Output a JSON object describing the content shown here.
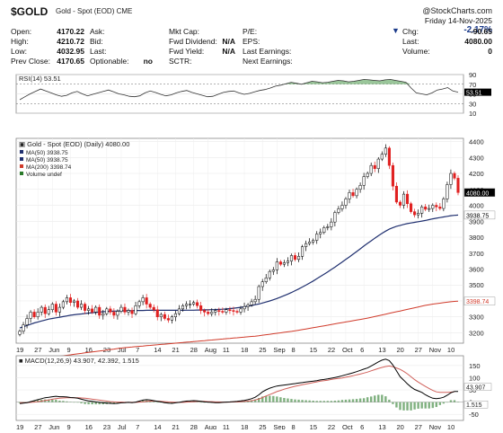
{
  "header": {
    "ticker": "$GOLD",
    "description": "Gold - Spot (EOD)",
    "exchange": "CME",
    "brand": "@StockCharts.com",
    "date": "Friday 14-Nov-2025",
    "change_pct": "-2.17%",
    "rows": [
      {
        "l1": "Open:",
        "v1": "4170.22",
        "l2": "Ask:",
        "v2": "",
        "l3": "Mkt Cap:",
        "v3": "",
        "l4": "P/E:",
        "v4": "",
        "l5": "Chg:",
        "v5": "-90.65"
      },
      {
        "l1": "High:",
        "v1": "4210.72",
        "l2": "Bid:",
        "v2": "",
        "l3": "Fwd Dividend:",
        "v3": "N/A",
        "l4": "EPS:",
        "v4": "",
        "l5": "Last:",
        "v5": "4080.00"
      },
      {
        "l1": "Low:",
        "v1": "4032.95",
        "l2": "Last:",
        "v2": "",
        "l3": "Fwd Yield:",
        "v3": "N/A",
        "l4": "Last Earnings:",
        "v4": "",
        "l5": "Volume:",
        "v5": "0"
      },
      {
        "l1": "Prev Close:",
        "v1": "4170.65",
        "l2": "Optionable:",
        "v2": "no",
        "l3": "SCTR:",
        "v3": "",
        "l4": "Next Earnings:",
        "v4": "",
        "l5": "",
        "v5": ""
      }
    ]
  },
  "colors": {
    "up": "#ffffff",
    "down": "#e01f1f",
    "ma50": "#1f2f6f",
    "ma200": "#d03a2a",
    "rsi_fill": "#8fc08f",
    "macd": "#000000",
    "signal": "#d0605a",
    "hist": "#7fb07f",
    "last_tag": "#000000",
    "down_arrow": "#1a3a8a"
  },
  "chart_data": [
    {
      "type": "line",
      "title": "RSI(14) 53.51",
      "indicator": "RSI(14)",
      "last_value": 53.51,
      "ylim": [
        10,
        90
      ],
      "yticks": [
        10,
        30,
        50,
        70,
        90
      ],
      "overbought": 70,
      "oversold": 30,
      "values": [
        38,
        44,
        50,
        55,
        60,
        56,
        52,
        48,
        45,
        47,
        52,
        55,
        50,
        46,
        49,
        52,
        55,
        58,
        54,
        50,
        48,
        45,
        44,
        46,
        52,
        56,
        53,
        49,
        46,
        48,
        52,
        55,
        57,
        53,
        50,
        47,
        44,
        45,
        49,
        53,
        55,
        56,
        52,
        49,
        51,
        54,
        57,
        59,
        62,
        66,
        68,
        71,
        74,
        72,
        70,
        73,
        76,
        75,
        73,
        74,
        76,
        78,
        77,
        75,
        76,
        78,
        80,
        79,
        78,
        77,
        79,
        80,
        78,
        76,
        74,
        62,
        52,
        50,
        48,
        52,
        58,
        60,
        63,
        56,
        53.51
      ]
    },
    {
      "type": "candlestick",
      "title": "Gold - Spot (EOD) (Daily) 4080.00",
      "legend": [
        "MA(50) 3938.75",
        "MA(50) 3938.75",
        "MA(200) 3398.74",
        "Volume undef"
      ],
      "ylim": [
        3135,
        4420
      ],
      "yticks": [
        3200,
        3300,
        3400,
        3500,
        3600,
        3700,
        3800,
        3900,
        4000,
        4100,
        4200,
        4300,
        4400
      ],
      "last_price": "4080.00",
      "ma50_last": "3938.75",
      "ma200_last": "3398.74",
      "x_labels": [
        "19",
        "27",
        "Jun",
        "9",
        "16",
        "23",
        "Jul",
        "7",
        "14",
        "21",
        "28",
        "Aug",
        "11",
        "18",
        "25",
        "Sep",
        "8",
        "15",
        "22",
        "Oct",
        "6",
        "13",
        "20",
        "27",
        "Nov",
        "10"
      ],
      "x_label_index": [
        0,
        5,
        9,
        14,
        19,
        24,
        28,
        33,
        38,
        43,
        48,
        52,
        57,
        62,
        67,
        71,
        76,
        81,
        86,
        90,
        95,
        100,
        105,
        110,
        114,
        119
      ],
      "closes": [
        3210,
        3250,
        3290,
        3330,
        3300,
        3330,
        3360,
        3320,
        3345,
        3380,
        3330,
        3360,
        3395,
        3420,
        3390,
        3400,
        3360,
        3380,
        3340,
        3350,
        3330,
        3360,
        3310,
        3320,
        3350,
        3330,
        3310,
        3335,
        3360,
        3330,
        3340,
        3320,
        3370,
        3395,
        3420,
        3380,
        3360,
        3345,
        3300,
        3315,
        3290,
        3280,
        3300,
        3320,
        3350,
        3370,
        3380,
        3380,
        3390,
        3370,
        3340,
        3330,
        3320,
        3330,
        3340,
        3335,
        3330,
        3345,
        3340,
        3335,
        3330,
        3350,
        3365,
        3375,
        3395,
        3410,
        3490,
        3520,
        3545,
        3585,
        3595,
        3645,
        3630,
        3640,
        3650,
        3685,
        3660,
        3680,
        3740,
        3760,
        3770,
        3780,
        3820,
        3830,
        3860,
        3865,
        3895,
        3955,
        3978,
        4000,
        4040,
        4080,
        4060,
        4100,
        4125,
        4180,
        4200,
        4250,
        4230,
        4290,
        4320,
        4359,
        4250,
        4120,
        4020,
        4000,
        4070,
        4010,
        3960,
        3940,
        3950,
        3990,
        3975,
        3980,
        4000,
        3990,
        3980,
        4040,
        4130,
        4200,
        4170,
        4080
      ],
      "ma50": [
        3230,
        3238,
        3246,
        3254,
        3262,
        3268,
        3274,
        3280,
        3286,
        3290,
        3294,
        3298,
        3302,
        3306,
        3310,
        3313,
        3316,
        3318,
        3321,
        3324,
        3326,
        3328,
        3330,
        3332,
        3334,
        3335,
        3336,
        3337,
        3338,
        3338,
        3339,
        3339,
        3340,
        3340,
        3340,
        3341,
        3341,
        3341,
        3341,
        3341,
        3341,
        3341,
        3341,
        3341,
        3341,
        3341,
        3342,
        3342,
        3342,
        3343,
        3343,
        3344,
        3344,
        3345,
        3346,
        3347,
        3348,
        3350,
        3352,
        3354,
        3357,
        3360,
        3363,
        3367,
        3371,
        3376,
        3381,
        3387,
        3393,
        3400,
        3407,
        3415,
        3424,
        3433,
        3443,
        3453,
        3464,
        3475,
        3487,
        3499,
        3512,
        3525,
        3539,
        3553,
        3567,
        3582,
        3597,
        3612,
        3628,
        3644,
        3660,
        3676,
        3693,
        3710,
        3727,
        3744,
        3761,
        3777,
        3793,
        3809,
        3824,
        3838,
        3850,
        3860,
        3868,
        3874,
        3880,
        3885,
        3889,
        3893,
        3897,
        3901,
        3905,
        3910,
        3915,
        3919,
        3923,
        3927,
        3931,
        3935,
        3937,
        3938.75
      ],
      "ma200": [
        3020,
        3023,
        3026,
        3029,
        3032,
        3035,
        3038,
        3041,
        3044,
        3047,
        3050,
        3053,
        3056,
        3059,
        3062,
        3065,
        3068,
        3071,
        3074,
        3077,
        3080,
        3083,
        3086,
        3089,
        3092,
        3095,
        3098,
        3101,
        3104,
        3107,
        3109,
        3111,
        3113,
        3115,
        3117,
        3119,
        3121,
        3123,
        3125,
        3127,
        3129,
        3131,
        3133,
        3135,
        3137,
        3139,
        3141,
        3143,
        3145,
        3147,
        3149,
        3151,
        3153,
        3155,
        3157,
        3159,
        3161,
        3163,
        3165,
        3167,
        3169,
        3171,
        3173,
        3175,
        3177,
        3179,
        3182,
        3185,
        3188,
        3191,
        3194,
        3197,
        3200,
        3203,
        3206,
        3209,
        3212,
        3216,
        3220,
        3224,
        3228,
        3232,
        3236,
        3240,
        3244,
        3248,
        3252,
        3256,
        3260,
        3264,
        3268,
        3272,
        3276,
        3280,
        3284,
        3288,
        3292,
        3297,
        3302,
        3307,
        3312,
        3317,
        3322,
        3327,
        3332,
        3337,
        3342,
        3347,
        3352,
        3357,
        3362,
        3367,
        3372,
        3376,
        3380,
        3383,
        3386,
        3389,
        3392,
        3395,
        3397,
        3398.74
      ]
    },
    {
      "type": "line",
      "title": "MACD(12,26,9) 43.907, 42.392, 1.515",
      "indicator": "MACD(12,26,9)",
      "macd_last": "43.907",
      "signal_last": "42.392",
      "hist_last": "1.515",
      "ylim": [
        -75,
        190
      ],
      "yticks": [
        -50,
        0,
        50,
        100,
        150
      ],
      "x_labels": [
        "19",
        "27",
        "Jun",
        "9",
        "16",
        "23",
        "Jul",
        "7",
        "14",
        "21",
        "28",
        "Aug",
        "11",
        "18",
        "25",
        "Sep",
        "8",
        "15",
        "22",
        "Oct",
        "6",
        "13",
        "20",
        "27",
        "Nov",
        "10"
      ],
      "macd": [
        -6,
        -4,
        -2,
        2,
        6,
        10,
        14,
        18,
        20,
        22,
        24,
        22,
        22,
        21,
        19,
        18,
        16,
        12,
        8,
        5,
        3,
        1,
        -1,
        -3,
        -4,
        -5,
        -6,
        -5,
        -3,
        -2,
        -1,
        -2,
        0,
        4,
        8,
        10,
        9,
        6,
        3,
        1,
        -2,
        -4,
        -5,
        -3,
        -1,
        2,
        4,
        5,
        6,
        5,
        3,
        1,
        0,
        -1,
        -2,
        -2,
        -1,
        0,
        1,
        2,
        3,
        5,
        7,
        10,
        14,
        20,
        30,
        42,
        50,
        57,
        62,
        66,
        68,
        70,
        72,
        74,
        76,
        78,
        80,
        82,
        84,
        86,
        88,
        91,
        93,
        95,
        98,
        101,
        104,
        108,
        112,
        116,
        120,
        125,
        130,
        135,
        140,
        148,
        156,
        165,
        172,
        176,
        170,
        152,
        128,
        104,
        90,
        75,
        62,
        52,
        46,
        40,
        30,
        22,
        16,
        14,
        16,
        20,
        28,
        38,
        44,
        43.907
      ],
      "signal": [
        -2,
        -2,
        -2,
        -1,
        0,
        2,
        4,
        7,
        9,
        12,
        14,
        16,
        17,
        18,
        18,
        18,
        18,
        17,
        16,
        14,
        12,
        10,
        8,
        6,
        4,
        2,
        1,
        0,
        0,
        -1,
        -1,
        -1,
        -1,
        0,
        1,
        3,
        4,
        4,
        4,
        3,
        2,
        1,
        0,
        -1,
        -1,
        -1,
        0,
        1,
        2,
        3,
        3,
        3,
        2,
        2,
        1,
        1,
        0,
        0,
        0,
        1,
        1,
        2,
        3,
        4,
        6,
        9,
        13,
        19,
        25,
        31,
        37,
        43,
        48,
        53,
        57,
        61,
        65,
        68,
        71,
        74,
        77,
        80,
        83,
        86,
        88,
        90,
        93,
        95,
        97,
        99,
        102,
        105,
        108,
        112,
        115,
        119,
        123,
        128,
        133,
        138,
        142,
        146,
        148,
        145,
        140,
        134,
        126,
        116,
        104,
        92,
        82,
        73,
        64,
        56,
        48,
        42,
        40,
        40,
        40,
        41,
        42.392
      ],
      "hist": [
        -4,
        -2,
        0,
        3,
        6,
        8,
        10,
        11,
        11,
        10,
        10,
        6,
        5,
        3,
        1,
        0,
        -2,
        -5,
        -8,
        -9,
        -9,
        -9,
        -9,
        -9,
        -8,
        -7,
        -7,
        -5,
        -3,
        -1,
        0,
        -1,
        1,
        4,
        7,
        7,
        5,
        2,
        -1,
        -2,
        -4,
        -5,
        -5,
        -2,
        0,
        3,
        4,
        4,
        4,
        2,
        0,
        -2,
        -2,
        -3,
        -3,
        -3,
        -1,
        0,
        1,
        1,
        2,
        3,
        4,
        6,
        8,
        11,
        17,
        23,
        25,
        26,
        25,
        23,
        20,
        17,
        15,
        13,
        11,
        10,
        9,
        8,
        7,
        6,
        5,
        5,
        5,
        5,
        5,
        6,
        7,
        9,
        10,
        11,
        12,
        13,
        15,
        16,
        20,
        23,
        27,
        30,
        30,
        24,
        10,
        -8,
        -22,
        -32,
        -34,
        -34,
        -34,
        -30,
        -27,
        -26,
        -26,
        -26,
        -24,
        -20,
        -12,
        -6,
        0,
        8,
        8,
        1.515
      ]
    }
  ]
}
